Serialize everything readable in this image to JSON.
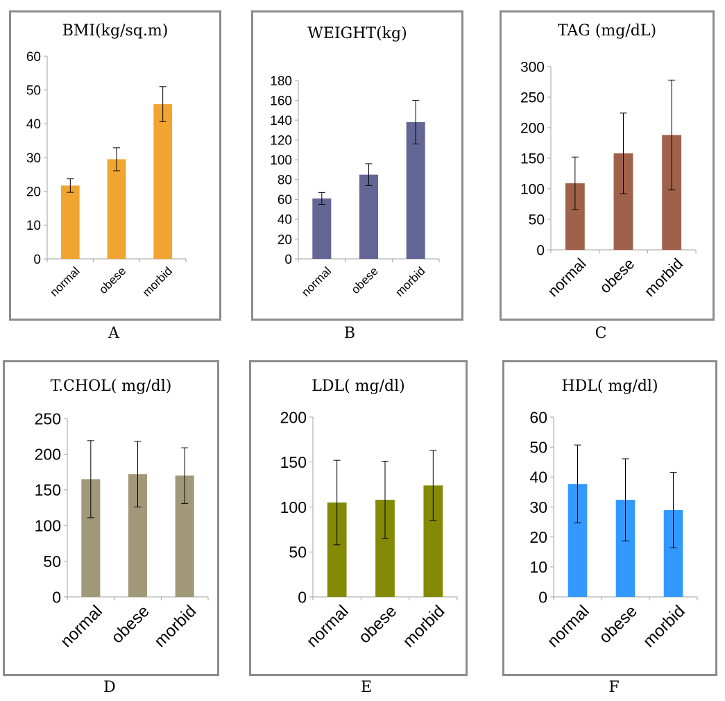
{
  "chart_data": [
    {
      "id": "A",
      "type": "bar",
      "title": "BMI(kg/sq.m)",
      "panel_label": "A",
      "categories": [
        "normal",
        "obese",
        "morbid"
      ],
      "values": [
        21.7,
        29.5,
        45.8
      ],
      "errors": [
        2.0,
        3.4,
        5.2
      ],
      "ylim": [
        0,
        60
      ],
      "ytick_step": 10,
      "color": "#f0a530",
      "grid": false
    },
    {
      "id": "B",
      "type": "bar",
      "title": "WEIGHT(kg)",
      "panel_label": "B",
      "categories": [
        "normal",
        "obese",
        "morbid"
      ],
      "values": [
        61,
        85,
        138
      ],
      "errors": [
        6,
        11,
        22
      ],
      "ylim": [
        0,
        180
      ],
      "ytick_step": 20,
      "color": "#646796",
      "grid": false
    },
    {
      "id": "C",
      "type": "bar",
      "title": "TAG (mg/dL)",
      "panel_label": "C",
      "categories": [
        "normal",
        "obese",
        "morbid"
      ],
      "values": [
        109,
        158,
        188
      ],
      "errors": [
        43,
        66,
        90
      ],
      "ylim": [
        0,
        300
      ],
      "ytick_step": 50,
      "color": "#a0614b",
      "grid": false
    },
    {
      "id": "D",
      "type": "bar",
      "title": "T.CHOL( mg/dl)",
      "panel_label": "D",
      "categories": [
        "normal",
        "obese",
        "morbid"
      ],
      "values": [
        165,
        172,
        170
      ],
      "errors": [
        54,
        46,
        39
      ],
      "ylim": [
        0,
        250
      ],
      "ytick_step": 50,
      "color": "#a09878",
      "grid": false
    },
    {
      "id": "E",
      "type": "bar",
      "title": "LDL( mg/dl)",
      "panel_label": "E",
      "categories": [
        "normal",
        "obese",
        "morbid"
      ],
      "values": [
        105,
        108,
        124
      ],
      "errors": [
        47,
        43,
        39
      ],
      "ylim": [
        0,
        200
      ],
      "ytick_step": 50,
      "color": "#828a06",
      "grid": false
    },
    {
      "id": "F",
      "type": "bar",
      "title": "HDL( mg/dl)",
      "panel_label": "F",
      "categories": [
        "normal",
        "obese",
        "morbid"
      ],
      "values": [
        37.7,
        32.4,
        29.0
      ],
      "errors": [
        13.0,
        13.7,
        12.6
      ],
      "ylim": [
        0,
        60
      ],
      "ytick_step": 10,
      "color": "#3399ff",
      "grid": false
    }
  ]
}
